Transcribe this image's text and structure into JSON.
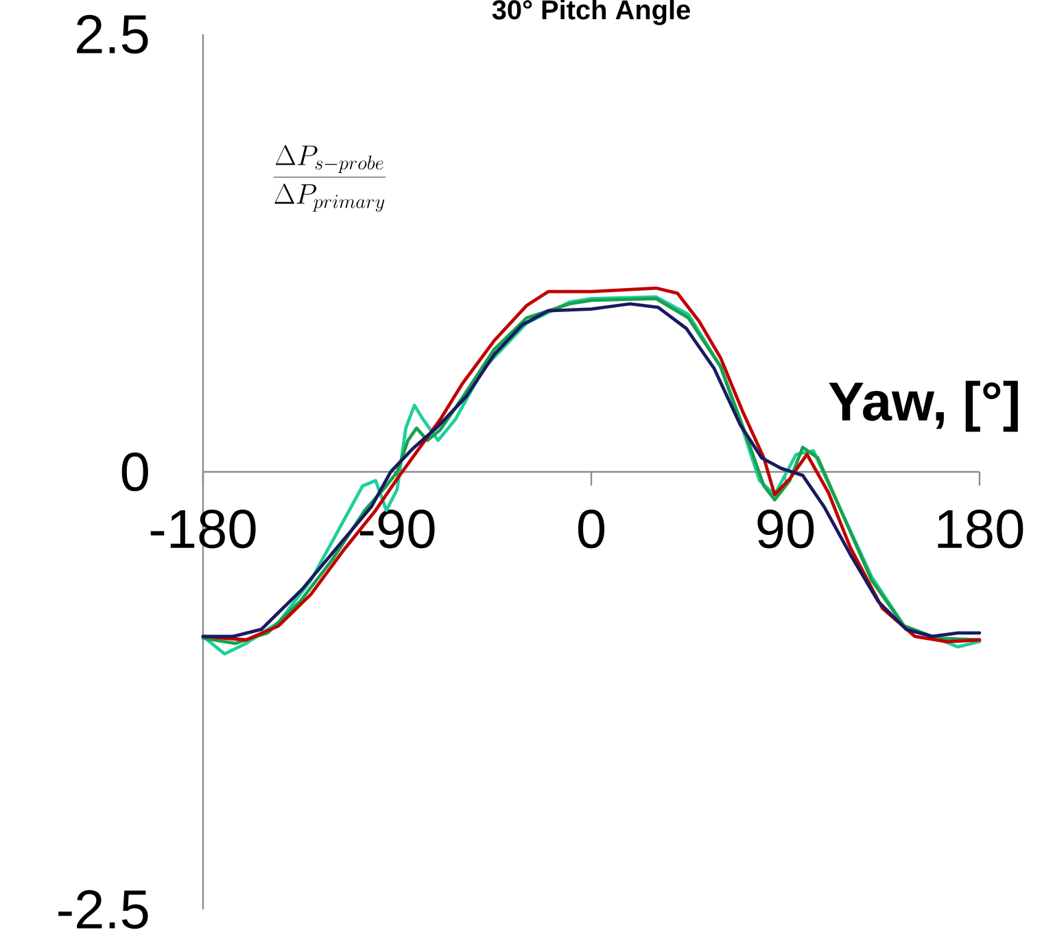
{
  "chart_data": {
    "type": "line",
    "title": "30° Pitch Angle",
    "xlabel": "Yaw, [°]",
    "ylabel": "\\frac{\\Delta P_{s-probe}}{\\Delta P_{primary}}",
    "xlim": [
      -180,
      180
    ],
    "xticks": [
      -180,
      -90,
      0,
      90,
      180
    ],
    "ylim": [
      -2.5,
      2.5
    ],
    "yticks": [
      -2.5,
      0,
      2.5
    ],
    "series": [
      {
        "color": "#1fcf9a",
        "x": [
          -180,
          -170,
          -160,
          -145,
          -130,
          -118,
          -106,
          -100,
          -95,
          -90,
          -86,
          -82,
          -78,
          -71,
          -63,
          -50,
          -30,
          -10,
          0,
          30,
          45,
          60,
          70,
          78,
          85,
          95,
          103,
          115,
          130,
          145,
          160,
          170,
          180
        ],
        "values": [
          -0.94,
          -1.04,
          -0.98,
          -0.86,
          -0.62,
          -0.35,
          -0.08,
          -0.05,
          -0.22,
          -0.1,
          0.25,
          0.38,
          0.3,
          0.18,
          0.3,
          0.59,
          0.85,
          0.97,
          0.99,
          1.0,
          0.9,
          0.6,
          0.25,
          -0.05,
          -0.13,
          0.1,
          0.12,
          -0.2,
          -0.6,
          -0.88,
          -0.95,
          -1.0,
          -0.97
        ]
      },
      {
        "color": "#1aa050",
        "x": [
          -180,
          -165,
          -150,
          -135,
          -120,
          -105,
          -95,
          -90,
          -85,
          -81,
          -76,
          -70,
          -60,
          -45,
          -30,
          -10,
          0,
          30,
          45,
          60,
          72,
          80,
          85,
          92,
          98,
          105,
          115,
          130,
          145,
          160,
          180
        ],
        "values": [
          -0.95,
          -0.98,
          -0.92,
          -0.74,
          -0.5,
          -0.22,
          -0.08,
          0.0,
          0.18,
          0.25,
          0.18,
          0.24,
          0.42,
          0.7,
          0.88,
          0.96,
          0.98,
          0.99,
          0.88,
          0.6,
          0.2,
          -0.08,
          -0.16,
          -0.05,
          0.14,
          0.08,
          -0.2,
          -0.62,
          -0.88,
          -0.95,
          -0.96
        ]
      },
      {
        "color": "#c00000",
        "x": [
          -180,
          -160,
          -145,
          -130,
          -115,
          -100,
          -90,
          -80,
          -70,
          -60,
          -45,
          -30,
          -20,
          0,
          30,
          40,
          50,
          60,
          70,
          80,
          85,
          92,
          100,
          110,
          120,
          135,
          150,
          165,
          180
        ],
        "values": [
          -0.94,
          -0.96,
          -0.88,
          -0.7,
          -0.45,
          -0.22,
          -0.04,
          0.13,
          0.3,
          0.5,
          0.75,
          0.95,
          1.03,
          1.03,
          1.05,
          1.02,
          0.86,
          0.65,
          0.35,
          0.08,
          -0.13,
          -0.04,
          0.1,
          -0.12,
          -0.43,
          -0.78,
          -0.94,
          -0.97,
          -0.96
        ]
      },
      {
        "color": "#1a1a60",
        "x": [
          -180,
          -166,
          -153,
          -134,
          -115,
          -102,
          -93,
          -83,
          -71,
          -58,
          -45,
          -32,
          -20,
          0,
          18,
          31,
          44,
          57,
          69,
          79,
          88,
          98,
          108,
          120,
          133,
          146,
          158,
          170,
          180
        ],
        "values": [
          -0.94,
          -0.94,
          -0.9,
          -0.67,
          -0.39,
          -0.2,
          0.0,
          0.13,
          0.26,
          0.43,
          0.67,
          0.84,
          0.92,
          0.93,
          0.96,
          0.94,
          0.82,
          0.59,
          0.27,
          0.08,
          0.02,
          -0.02,
          -0.2,
          -0.47,
          -0.74,
          -0.9,
          -0.94,
          -0.92,
          -0.92
        ]
      }
    ]
  }
}
